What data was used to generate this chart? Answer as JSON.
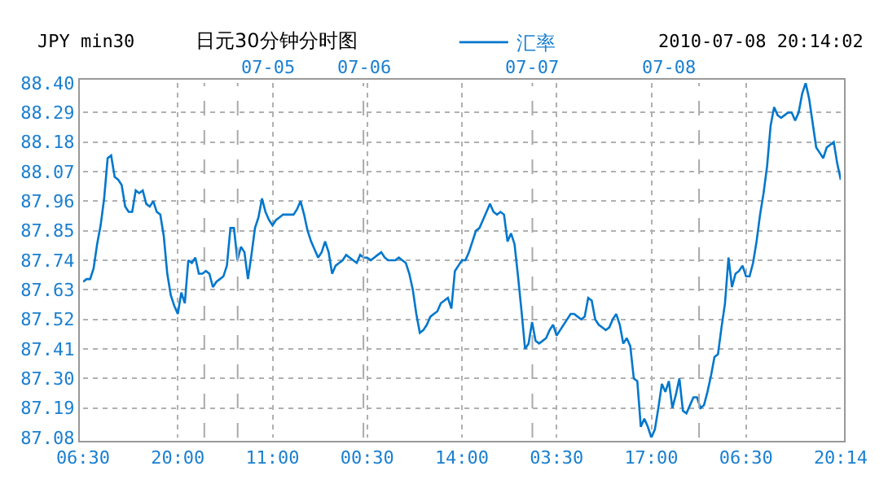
{
  "chart_data": {
    "type": "line",
    "title": "JPY min30",
    "subtitle": "日元30分钟分时图",
    "annotations": [
      "2010-07-08 20:14:02",
      "07-05",
      "07-06",
      "07-07",
      "07-08"
    ],
    "categories": [
      "06:30",
      null,
      null,
      null,
      null,
      null,
      null,
      null,
      null,
      null,
      null,
      null,
      null,
      null,
      null,
      null,
      null,
      null,
      null,
      null,
      null,
      null,
      null,
      null,
      null,
      null,
      null,
      "20:00",
      null,
      null,
      null,
      null,
      null,
      null,
      null,
      null,
      null,
      null,
      null,
      null,
      null,
      null,
      null,
      null,
      null,
      null,
      null,
      null,
      null,
      null,
      null,
      null,
      null,
      null,
      "11:00",
      null,
      null,
      null,
      null,
      null,
      null,
      null,
      null,
      null,
      null,
      null,
      null,
      null,
      null,
      null,
      null,
      null,
      null,
      null,
      null,
      null,
      null,
      null,
      null,
      null,
      null,
      "00:30",
      null,
      null,
      null,
      null,
      null,
      null,
      null,
      null,
      null,
      null,
      null,
      null,
      null,
      null,
      null,
      null,
      null,
      null,
      null,
      null,
      null,
      null,
      null,
      null,
      null,
      null,
      "14:00",
      null,
      null,
      null,
      null,
      null,
      null,
      null,
      null,
      null,
      null,
      null,
      null,
      null,
      null,
      null,
      null,
      null,
      null,
      null,
      null,
      null,
      null,
      null,
      null,
      null,
      null,
      "03:30",
      null,
      null,
      null,
      null,
      null,
      null,
      null,
      null,
      null,
      null,
      null,
      null,
      null,
      null,
      null,
      null,
      null,
      null,
      null,
      null,
      null,
      null,
      null,
      null,
      null,
      null,
      "17:00",
      null,
      null,
      null,
      null,
      null,
      null,
      null,
      null,
      null,
      null,
      null,
      null,
      null,
      null,
      null,
      null,
      null,
      null,
      null,
      null,
      null,
      null,
      null,
      null,
      null,
      null,
      "06:30",
      null,
      null,
      null,
      null,
      null,
      null,
      null,
      null,
      null,
      null,
      null,
      null,
      null,
      null,
      null,
      null,
      null,
      null,
      null,
      null,
      null,
      null,
      null,
      null,
      null,
      null,
      "20:14"
    ],
    "series": [
      {
        "name": "汇率",
        "color": "#0077cc",
        "values": [
          87.66,
          87.67,
          87.67,
          87.71,
          87.8,
          87.87,
          87.97,
          88.12,
          88.13,
          88.05,
          88.04,
          88.02,
          87.94,
          87.92,
          87.92,
          88.0,
          87.99,
          88.0,
          87.95,
          87.94,
          87.96,
          87.92,
          87.91,
          87.83,
          87.69,
          87.61,
          87.57,
          87.54,
          87.62,
          87.58,
          87.74,
          87.73,
          87.75,
          87.69,
          87.69,
          87.7,
          87.69,
          87.64,
          87.66,
          87.67,
          87.68,
          87.72,
          87.86,
          87.86,
          87.74,
          87.79,
          87.77,
          87.67,
          87.76,
          87.86,
          87.9,
          87.97,
          87.92,
          87.89,
          87.87,
          87.89,
          87.9,
          87.91,
          87.91,
          87.91,
          87.91,
          87.93,
          87.96,
          87.91,
          87.85,
          87.81,
          87.78,
          87.75,
          87.77,
          87.81,
          87.77,
          87.69,
          87.72,
          87.73,
          87.74,
          87.76,
          87.75,
          87.74,
          87.73,
          87.76,
          87.75,
          87.75,
          87.74,
          87.75,
          87.76,
          87.77,
          87.75,
          87.74,
          87.74,
          87.74,
          87.75,
          87.74,
          87.73,
          87.69,
          87.63,
          87.54,
          87.47,
          87.48,
          87.5,
          87.53,
          87.54,
          87.55,
          87.58,
          87.59,
          87.6,
          87.56,
          87.7,
          87.72,
          87.74,
          87.74,
          87.77,
          87.81,
          87.85,
          87.86,
          87.89,
          87.92,
          87.95,
          87.92,
          87.91,
          87.92,
          87.91,
          87.81,
          87.84,
          87.8,
          87.68,
          87.55,
          87.41,
          87.43,
          87.51,
          87.44,
          87.43,
          87.44,
          87.45,
          87.48,
          87.5,
          87.46,
          87.48,
          87.5,
          87.52,
          87.54,
          87.54,
          87.53,
          87.52,
          87.53,
          87.6,
          87.59,
          87.52,
          87.5,
          87.49,
          87.48,
          87.49,
          87.52,
          87.54,
          87.5,
          87.43,
          87.45,
          87.42,
          87.3,
          87.29,
          87.12,
          87.15,
          87.12,
          87.08,
          87.11,
          87.19,
          87.28,
          87.25,
          87.29,
          87.19,
          87.24,
          87.3,
          87.18,
          87.17,
          87.2,
          87.23,
          87.23,
          87.19,
          87.2,
          87.25,
          87.31,
          87.38,
          87.39,
          87.49,
          87.58,
          87.75,
          87.64,
          87.69,
          87.7,
          87.72,
          87.68,
          87.68,
          87.73,
          87.81,
          87.91,
          87.99,
          88.09,
          88.24,
          88.31,
          88.28,
          88.27,
          88.28,
          88.29,
          88.29,
          88.26,
          88.29,
          88.36,
          88.4,
          88.34,
          88.25,
          88.16,
          88.14,
          88.12,
          88.16,
          88.17,
          88.18,
          88.1,
          88.04
        ]
      }
    ],
    "ylim": [
      87.08,
      88.4
    ],
    "yticks": [
      87.08,
      87.19,
      {
        "value": 87.3,
        "label": "87.30"
      },
      87.41,
      87.52,
      87.63,
      87.74,
      87.85,
      87.96,
      88.07,
      88.18,
      88.29,
      {
        "value": 88.4,
        "label": "88.40"
      }
    ],
    "grid": true,
    "legend": "top",
    "marker": "none",
    "line_style": "solid"
  }
}
